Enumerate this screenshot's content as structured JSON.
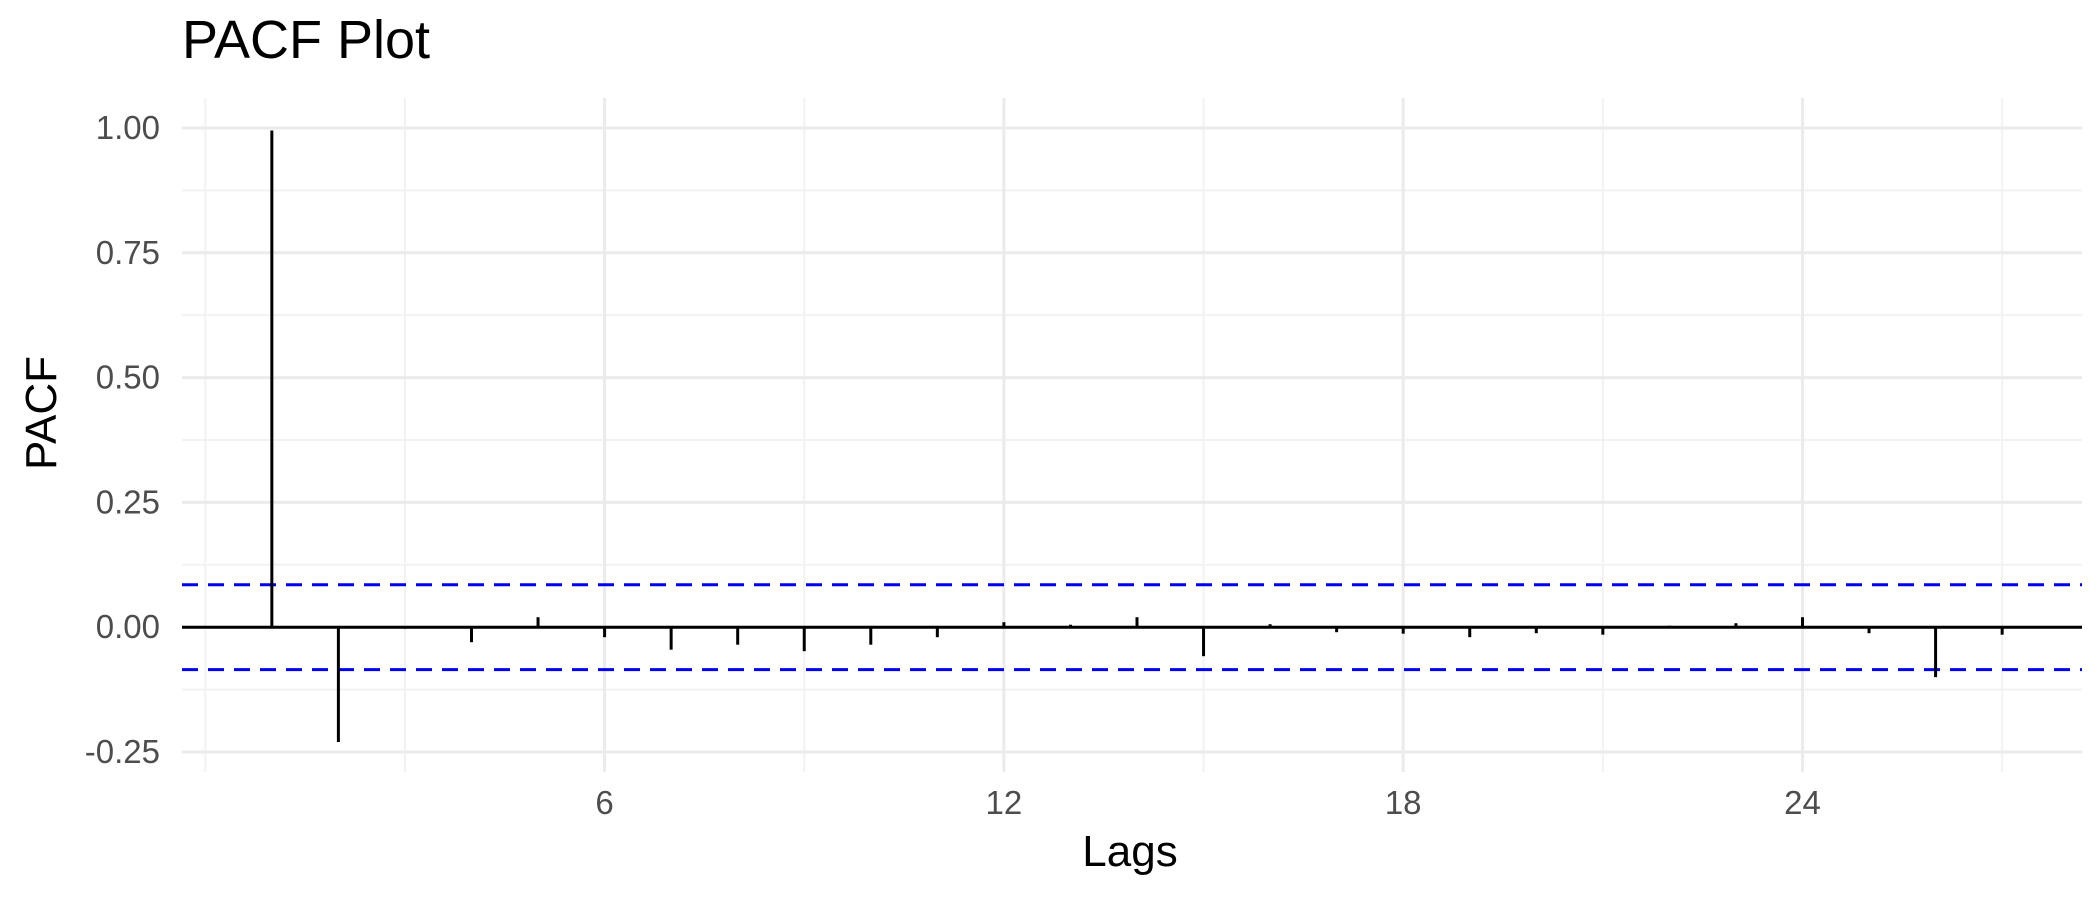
{
  "chart_data": {
    "type": "bar",
    "title": "PACF Plot",
    "xlabel": "Lags",
    "ylabel": "PACF",
    "xlim": [
      -0.35,
      28.2
    ],
    "ylim": [
      -0.29,
      1.06
    ],
    "x_ticks": [
      6,
      12,
      18,
      24
    ],
    "x_tick_labels": [
      "6",
      "12",
      "18",
      "24"
    ],
    "x_minor_ticks": [
      0,
      3,
      9,
      15,
      21,
      27
    ],
    "y_ticks": [
      1.0,
      0.75,
      0.5,
      0.25,
      0.0,
      -0.25
    ],
    "y_tick_labels": [
      "1.00",
      "0.75",
      "0.50",
      "0.25",
      "0.00",
      "-0.25"
    ],
    "y_minor_ticks": [
      0.875,
      0.625,
      0.375,
      0.125,
      -0.125
    ],
    "grid": true,
    "legend": "none",
    "confidence_bounds": [
      0.085,
      -0.085
    ],
    "x": [
      1,
      2,
      3,
      4,
      5,
      6,
      7,
      8,
      9,
      10,
      11,
      12,
      13,
      14,
      15,
      16,
      17,
      18,
      19,
      20,
      21,
      22,
      23,
      24,
      25,
      26,
      27
    ],
    "values": [
      0.995,
      -0.23,
      -0.003,
      -0.03,
      0.02,
      -0.02,
      -0.045,
      -0.035,
      -0.048,
      -0.035,
      -0.02,
      0.01,
      0.005,
      0.02,
      -0.058,
      0.006,
      -0.01,
      -0.013,
      -0.02,
      -0.012,
      -0.015,
      0.003,
      0.008,
      0.02,
      -0.012,
      -0.1,
      -0.015
    ],
    "colors": {
      "bars": "#000000",
      "confidence": "#0000ee",
      "grid_major": "#ebebeb",
      "grid_minor": "#f2f2f2",
      "zero_line": "#000000"
    }
  }
}
